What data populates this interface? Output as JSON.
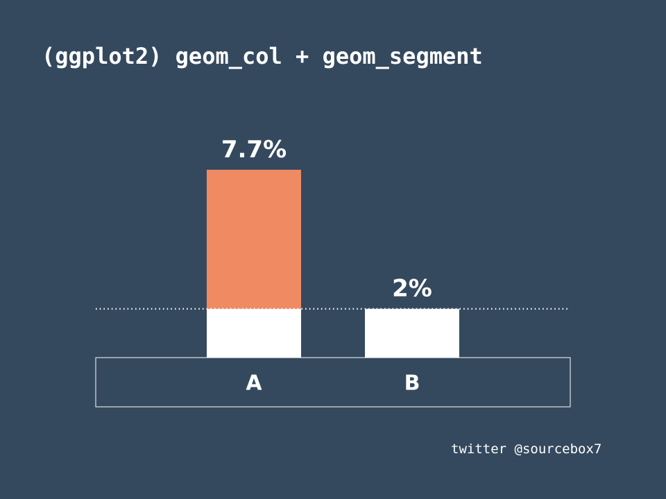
{
  "title": "(ggplot2) geom_col + geom_segment",
  "footer": "twitter @sourcebox7",
  "colors": {
    "background": "#34495e",
    "highlight": "#f08a62",
    "bar": "#ffffff",
    "reference_line": "#ffffff",
    "text": "#ffffff"
  },
  "chart_data": {
    "type": "bar",
    "categories": [
      "A",
      "B"
    ],
    "values": [
      7.7,
      2
    ],
    "labels": [
      "7.7%",
      "2%"
    ],
    "baseline": 2,
    "ylim": [
      0,
      10.2
    ],
    "reference_line": {
      "value": 2,
      "style": "dotted"
    },
    "xlabel": "",
    "ylabel": "",
    "grid": false
  }
}
